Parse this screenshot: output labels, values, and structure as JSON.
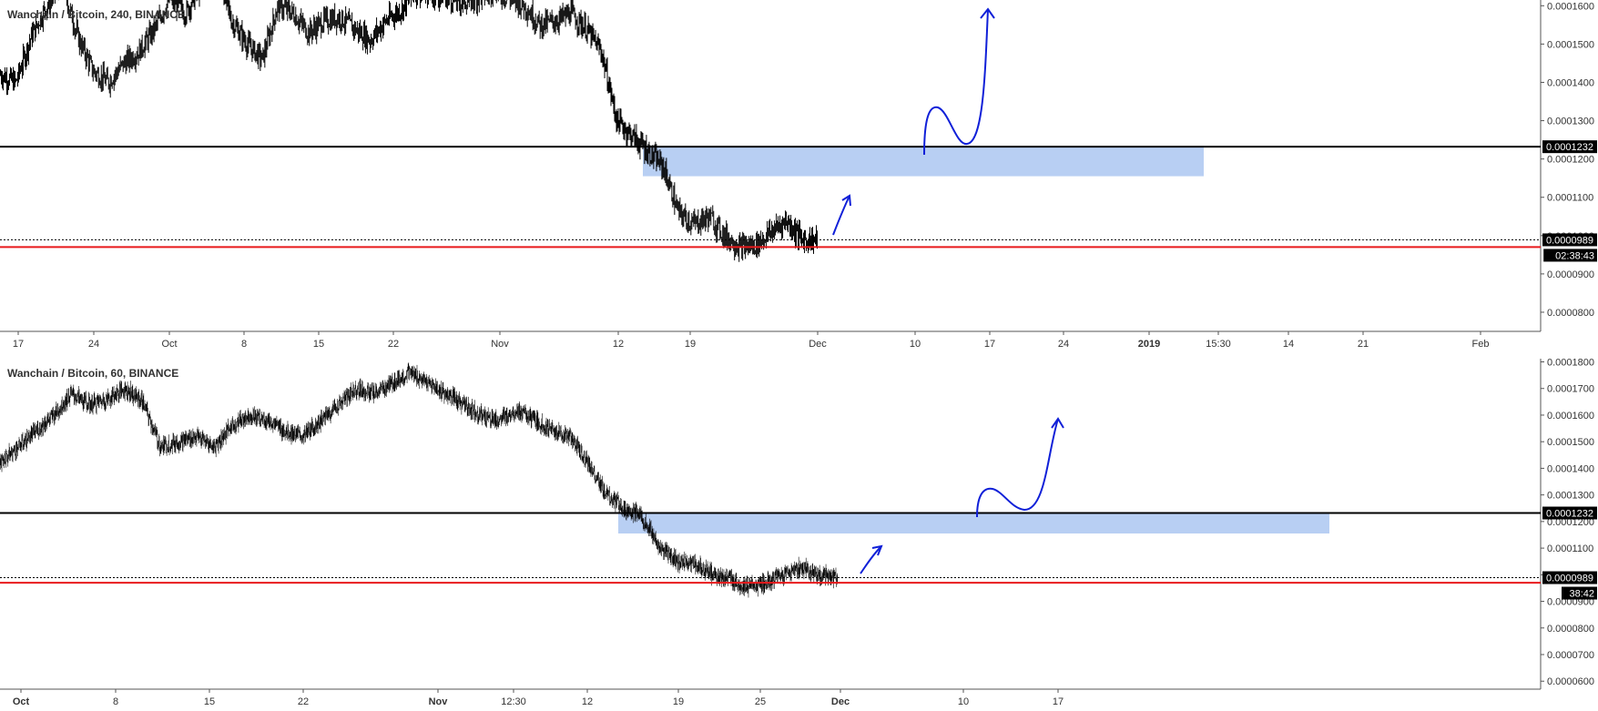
{
  "chart_data": [
    {
      "type": "candlestick",
      "title": "Wanchain / Bitcoin, 240, BINANCE",
      "ylim": [
        7.5e-05,
        0.0001615
      ],
      "yticks": [
        "0.0001600",
        "0.0001500",
        "0.0001400",
        "0.0001300",
        "0.0001200",
        "0.0001100",
        "0.0001000",
        "0.0000900",
        "0.0000800"
      ],
      "xticks": [
        "17",
        "24",
        "Oct",
        "8",
        "15",
        "22",
        "Nov",
        "12",
        "19",
        "Dec",
        "10",
        "17",
        "24",
        "2019",
        "15:30",
        "14",
        "21",
        "Feb"
      ],
      "bold_xticks": [
        "2019"
      ],
      "price_label": "0.0000989",
      "countdown": "02:38:43",
      "resistance_label": "0.0001232",
      "resistance": 0.0001232,
      "support": 9.7e-05,
      "zone": {
        "top": 0.0001232,
        "bottom": 0.0001155
      },
      "series_close": [
        0.000142,
        0.00014,
        0.000152,
        0.00016,
        0.000166,
        0.000152,
        0.000143,
        0.00014,
        0.000145,
        0.000148,
        0.000154,
        0.000162,
        0.000158,
        0.000165,
        0.00017,
        0.000156,
        0.00015,
        0.000146,
        0.00016,
        0.000158,
        0.000153,
        0.000156,
        0.000157,
        0.000154,
        0.000151,
        0.000156,
        0.000159,
        0.000164,
        0.000163,
        0.000162,
        0.000161,
        0.000162,
        0.000164,
        0.000162,
        0.00016,
        0.000155,
        0.000156,
        0.000158,
        0.000154,
        0.000148,
        0.00013,
        0.000126,
        0.000122,
        0.000118,
        0.000106,
        0.000103,
        0.000105,
        0.0001,
        9.7e-05,
        9.75e-05,
        0.000101,
        0.000104,
        9.9e-05,
        9.89e-05
      ]
    },
    {
      "type": "candlestick",
      "title": "Wanchain / Bitcoin, 60, BINANCE",
      "ylim": [
        5.7e-05,
        0.0001812
      ],
      "yticks": [
        "0.0001800",
        "0.0001700",
        "0.0001600",
        "0.0001500",
        "0.0001400",
        "0.0001300",
        "0.0001200",
        "0.0001100",
        "0.0001000",
        "0.0000900",
        "0.0000800",
        "0.0000700",
        "0.0000600"
      ],
      "xticks": [
        "Oct",
        "8",
        "15",
        "22",
        "Nov",
        "12:30",
        "12",
        "19",
        "25",
        "Dec",
        "10",
        "17"
      ],
      "bold_xticks": [
        "Oct",
        "Nov",
        "Dec"
      ],
      "price_label": "0.0000989",
      "countdown": "38:42",
      "resistance_label": "0.0001232",
      "resistance": 0.0001232,
      "support": 9.7e-05,
      "zone": {
        "top": 0.0001232,
        "bottom": 0.0001155
      },
      "series_close": [
        0.000142,
        0.000148,
        0.000154,
        0.00016,
        0.000168,
        0.000164,
        0.000166,
        0.00017,
        0.000165,
        0.000148,
        0.00015,
        0.000152,
        0.000148,
        0.000156,
        0.00016,
        0.000158,
        0.000154,
        0.000152,
        0.000158,
        0.000164,
        0.00017,
        0.000168,
        0.000172,
        0.000176,
        0.000172,
        0.000168,
        0.000164,
        0.00016,
        0.000158,
        0.000162,
        0.000158,
        0.000154,
        0.000152,
        0.000142,
        0.00013,
        0.000125,
        0.000122,
        0.00011,
        0.000105,
        0.000104,
        0.0001,
        9.8e-05,
        9.5e-05,
        9.7e-05,
        0.0001,
        0.000103,
        0.0001,
        9.89e-05
      ]
    }
  ],
  "colors": {
    "zone": "#b8cff3",
    "support_line": "#e8191b",
    "resistance_line": "#000000",
    "arrows": "#1020d8",
    "candles": "#000000",
    "axis_text": "#333333"
  }
}
